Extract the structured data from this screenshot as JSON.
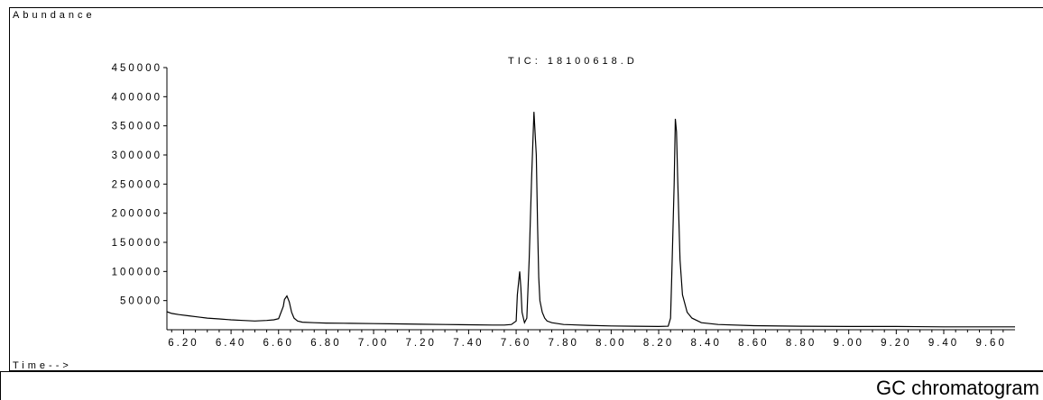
{
  "chart_data": {
    "type": "line",
    "title": "TIC: 18100618.D",
    "ylabel": "Abundance",
    "xlabel": "Time-->",
    "xlim": [
      6.13,
      9.7
    ],
    "ylim": [
      0,
      450000
    ],
    "x_ticks": [
      6.2,
      6.4,
      6.6,
      6.8,
      7.0,
      7.2,
      7.4,
      7.6,
      7.8,
      8.0,
      8.2,
      8.4,
      8.6,
      8.8,
      9.0,
      9.2,
      9.4,
      9.6
    ],
    "x_tick_labels": [
      "6.20",
      "6.40",
      "6.60",
      "6.80",
      "7.00",
      "7.20",
      "7.40",
      "7.60",
      "7.80",
      "8.00",
      "8.20",
      "8.40",
      "8.60",
      "8.80",
      "9.00",
      "9.20",
      "9.40",
      "9.60"
    ],
    "y_ticks": [
      50000,
      100000,
      150000,
      200000,
      250000,
      300000,
      350000,
      400000,
      450000
    ],
    "y_tick_labels": [
      "50000",
      "100000",
      "150000",
      "200000",
      "250000",
      "300000",
      "350000",
      "400000",
      "450000"
    ],
    "series": [
      {
        "x": [
          6.13,
          6.15,
          6.18,
          6.22,
          6.26,
          6.3,
          6.35,
          6.4,
          6.45,
          6.5,
          6.55,
          6.58,
          6.6,
          6.62,
          6.625,
          6.635,
          6.645,
          6.655,
          6.665,
          6.68,
          6.7,
          6.75,
          6.8,
          6.9,
          7.0,
          7.1,
          7.2,
          7.3,
          7.4,
          7.5,
          7.55,
          7.58,
          7.6,
          7.605,
          7.615,
          7.62,
          7.625,
          7.635,
          7.645,
          7.655,
          7.665,
          7.675,
          7.685,
          7.69,
          7.695,
          7.7,
          7.71,
          7.72,
          7.73,
          7.75,
          7.8,
          7.9,
          8.0,
          8.1,
          8.2,
          8.24,
          8.25,
          8.255,
          8.265,
          8.27,
          8.275,
          8.28,
          8.29,
          8.3,
          8.32,
          8.34,
          8.38,
          8.45,
          8.6,
          8.8,
          9.0,
          9.2,
          9.4,
          9.6,
          9.7
        ],
        "y": [
          31000,
          28000,
          26000,
          24000,
          22000,
          20000,
          18500,
          17000,
          16000,
          15000,
          16000,
          17000,
          19000,
          40000,
          52000,
          58000,
          48000,
          30000,
          20000,
          15000,
          13000,
          12000,
          11500,
          11000,
          10500,
          10000,
          9500,
          9000,
          8500,
          8000,
          8000,
          9000,
          15000,
          60000,
          100000,
          72000,
          30000,
          12000,
          20000,
          120000,
          260000,
          374000,
          300000,
          180000,
          90000,
          50000,
          30000,
          20000,
          15000,
          12000,
          9000,
          7500,
          6500,
          6000,
          5500,
          6000,
          20000,
          90000,
          250000,
          362000,
          340000,
          260000,
          120000,
          60000,
          30000,
          20000,
          12000,
          9000,
          7000,
          6000,
          5500,
          5500,
          5000,
          5000,
          5000
        ]
      }
    ]
  },
  "page": {
    "caption": "GC chromatogram"
  }
}
